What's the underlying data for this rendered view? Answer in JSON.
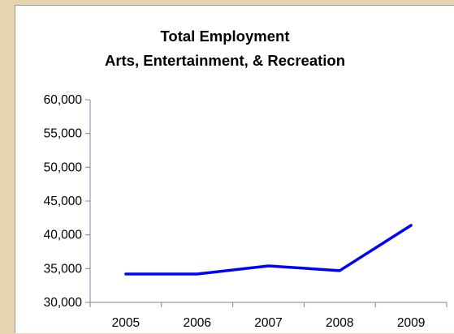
{
  "chart_data": {
    "type": "line",
    "title_lines": [
      "Total Employment",
      "Arts, Entertainment, & Recreation"
    ],
    "xlabel": "",
    "ylabel": "",
    "categories": [
      "2005",
      "2006",
      "2007",
      "2008",
      "2009"
    ],
    "series": [
      {
        "values": [
          34200,
          34200,
          35400,
          34700,
          41400
        ],
        "color": "#0000ff"
      }
    ],
    "ylim": [
      30000,
      60000
    ],
    "yticks": [
      "30,000",
      "35,000",
      "40,000",
      "45,000",
      "50,000",
      "55,000",
      "60,000"
    ],
    "grid": false,
    "legend": "none",
    "axis_color": "#8080a0"
  }
}
